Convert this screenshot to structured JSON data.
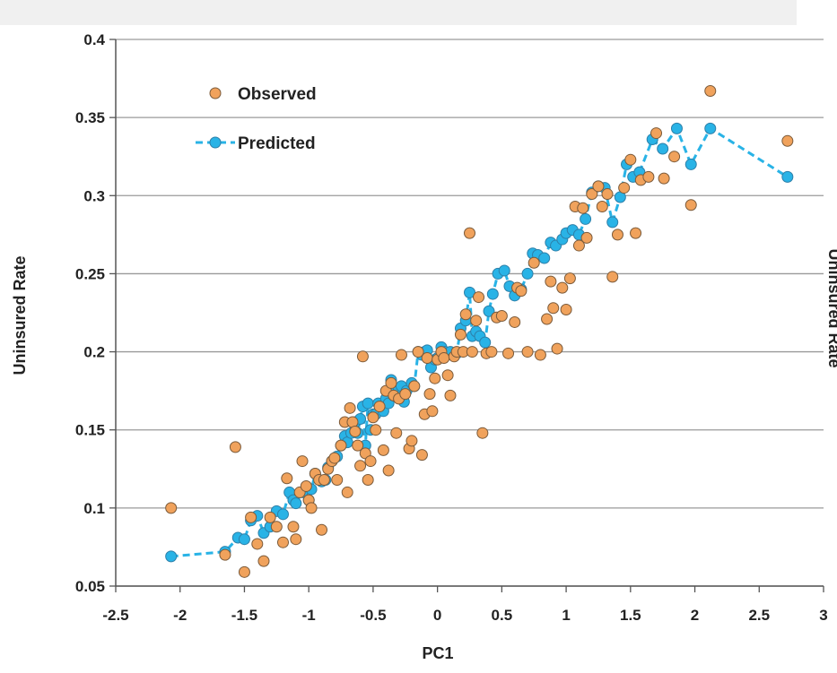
{
  "chart_data": {
    "type": "scatter",
    "xlabel": "PC1",
    "ylabel": "Uninsured Rate",
    "right_axis_label_clipped": "Uninsured Rate",
    "xlim": [
      -2.5,
      3
    ],
    "ylim": [
      0.05,
      0.4
    ],
    "x_ticks": [
      "-2.5",
      "-2",
      "-1.5",
      "-1",
      "-0.5",
      "0",
      "0.5",
      "1",
      "1.5",
      "2",
      "2.5",
      "3"
    ],
    "y_ticks": [
      "0.05",
      "0.1",
      "0.15",
      "0.2",
      "0.25",
      "0.3",
      "0.35",
      "0.4"
    ],
    "grid": "horizontal",
    "legend_position": "top-left",
    "colors": {
      "observed_fill": "#f0a25c",
      "observed_edge": "#7a5a3a",
      "predicted": "#29b3e6",
      "predicted_edge": "#2d7fa8",
      "grid": "#9a9a9a"
    },
    "series": [
      {
        "name": "Observed",
        "style": "markers",
        "points": [
          [
            -2.07,
            0.1
          ],
          [
            -1.65,
            0.07
          ],
          [
            -1.57,
            0.139
          ],
          [
            -1.5,
            0.059
          ],
          [
            -1.45,
            0.094
          ],
          [
            -1.4,
            0.077
          ],
          [
            -1.35,
            0.066
          ],
          [
            -1.3,
            0.094
          ],
          [
            -1.25,
            0.088
          ],
          [
            -1.2,
            0.078
          ],
          [
            -1.17,
            0.119
          ],
          [
            -1.12,
            0.088
          ],
          [
            -1.1,
            0.08
          ],
          [
            -1.07,
            0.11
          ],
          [
            -1.05,
            0.13
          ],
          [
            -1.02,
            0.114
          ],
          [
            -1.0,
            0.105
          ],
          [
            -0.98,
            0.1
          ],
          [
            -0.95,
            0.122
          ],
          [
            -0.92,
            0.118
          ],
          [
            -0.9,
            0.086
          ],
          [
            -0.88,
            0.118
          ],
          [
            -0.85,
            0.125
          ],
          [
            -0.82,
            0.13
          ],
          [
            -0.8,
            0.132
          ],
          [
            -0.78,
            0.118
          ],
          [
            -0.75,
            0.14
          ],
          [
            -0.72,
            0.155
          ],
          [
            -0.7,
            0.11
          ],
          [
            -0.68,
            0.164
          ],
          [
            -0.66,
            0.155
          ],
          [
            -0.64,
            0.149
          ],
          [
            -0.62,
            0.14
          ],
          [
            -0.6,
            0.127
          ],
          [
            -0.58,
            0.197
          ],
          [
            -0.56,
            0.135
          ],
          [
            -0.54,
            0.118
          ],
          [
            -0.52,
            0.13
          ],
          [
            -0.5,
            0.158
          ],
          [
            -0.48,
            0.15
          ],
          [
            -0.45,
            0.165
          ],
          [
            -0.42,
            0.137
          ],
          [
            -0.4,
            0.175
          ],
          [
            -0.38,
            0.124
          ],
          [
            -0.36,
            0.18
          ],
          [
            -0.34,
            0.172
          ],
          [
            -0.32,
            0.148
          ],
          [
            -0.3,
            0.17
          ],
          [
            -0.28,
            0.198
          ],
          [
            -0.25,
            0.173
          ],
          [
            -0.22,
            0.138
          ],
          [
            -0.2,
            0.143
          ],
          [
            -0.18,
            0.178
          ],
          [
            -0.15,
            0.2
          ],
          [
            -0.12,
            0.134
          ],
          [
            -0.1,
            0.16
          ],
          [
            -0.08,
            0.196
          ],
          [
            -0.06,
            0.173
          ],
          [
            -0.04,
            0.162
          ],
          [
            -0.02,
            0.183
          ],
          [
            0.0,
            0.195
          ],
          [
            0.03,
            0.2
          ],
          [
            0.05,
            0.196
          ],
          [
            0.08,
            0.185
          ],
          [
            0.1,
            0.172
          ],
          [
            0.13,
            0.197
          ],
          [
            0.15,
            0.2
          ],
          [
            0.18,
            0.211
          ],
          [
            0.2,
            0.2
          ],
          [
            0.22,
            0.224
          ],
          [
            0.25,
            0.276
          ],
          [
            0.27,
            0.2
          ],
          [
            0.3,
            0.22
          ],
          [
            0.32,
            0.235
          ],
          [
            0.35,
            0.148
          ],
          [
            0.38,
            0.199
          ],
          [
            0.42,
            0.2
          ],
          [
            0.46,
            0.222
          ],
          [
            0.5,
            0.223
          ],
          [
            0.55,
            0.199
          ],
          [
            0.6,
            0.219
          ],
          [
            0.62,
            0.241
          ],
          [
            0.65,
            0.239
          ],
          [
            0.7,
            0.2
          ],
          [
            0.75,
            0.257
          ],
          [
            0.8,
            0.198
          ],
          [
            0.85,
            0.221
          ],
          [
            0.88,
            0.245
          ],
          [
            0.9,
            0.228
          ],
          [
            0.93,
            0.202
          ],
          [
            0.97,
            0.241
          ],
          [
            1.0,
            0.227
          ],
          [
            1.03,
            0.247
          ],
          [
            1.07,
            0.293
          ],
          [
            1.1,
            0.268
          ],
          [
            1.13,
            0.292
          ],
          [
            1.16,
            0.273
          ],
          [
            1.2,
            0.301
          ],
          [
            1.25,
            0.306
          ],
          [
            1.28,
            0.293
          ],
          [
            1.32,
            0.301
          ],
          [
            1.36,
            0.248
          ],
          [
            1.4,
            0.275
          ],
          [
            1.45,
            0.305
          ],
          [
            1.5,
            0.323
          ],
          [
            1.54,
            0.276
          ],
          [
            1.58,
            0.31
          ],
          [
            1.64,
            0.312
          ],
          [
            1.7,
            0.34
          ],
          [
            1.76,
            0.311
          ],
          [
            1.84,
            0.325
          ],
          [
            1.97,
            0.294
          ],
          [
            2.12,
            0.367
          ],
          [
            2.72,
            0.335
          ]
        ]
      },
      {
        "name": "Predicted",
        "style": "dashed-line-with-markers",
        "points": [
          [
            -2.07,
            0.069
          ],
          [
            -1.65,
            0.072
          ],
          [
            -1.55,
            0.081
          ],
          [
            -1.5,
            0.08
          ],
          [
            -1.45,
            0.092
          ],
          [
            -1.4,
            0.095
          ],
          [
            -1.35,
            0.084
          ],
          [
            -1.3,
            0.088
          ],
          [
            -1.25,
            0.098
          ],
          [
            -1.2,
            0.096
          ],
          [
            -1.15,
            0.11
          ],
          [
            -1.12,
            0.105
          ],
          [
            -1.1,
            0.103
          ],
          [
            -1.05,
            0.11
          ],
          [
            -1.0,
            0.105
          ],
          [
            -0.98,
            0.112
          ],
          [
            -0.95,
            0.122
          ],
          [
            -0.9,
            0.117
          ],
          [
            -0.87,
            0.118
          ],
          [
            -0.85,
            0.126
          ],
          [
            -0.82,
            0.13
          ],
          [
            -0.78,
            0.133
          ],
          [
            -0.75,
            0.14
          ],
          [
            -0.72,
            0.146
          ],
          [
            -0.7,
            0.142
          ],
          [
            -0.67,
            0.148
          ],
          [
            -0.64,
            0.155
          ],
          [
            -0.62,
            0.148
          ],
          [
            -0.6,
            0.157
          ],
          [
            -0.58,
            0.165
          ],
          [
            -0.56,
            0.14
          ],
          [
            -0.54,
            0.167
          ],
          [
            -0.52,
            0.15
          ],
          [
            -0.5,
            0.16
          ],
          [
            -0.48,
            0.16
          ],
          [
            -0.46,
            0.167
          ],
          [
            -0.44,
            0.165
          ],
          [
            -0.42,
            0.162
          ],
          [
            -0.4,
            0.17
          ],
          [
            -0.38,
            0.167
          ],
          [
            -0.36,
            0.182
          ],
          [
            -0.34,
            0.172
          ],
          [
            -0.3,
            0.176
          ],
          [
            -0.28,
            0.178
          ],
          [
            -0.26,
            0.168
          ],
          [
            -0.24,
            0.175
          ],
          [
            -0.2,
            0.18
          ],
          [
            -0.18,
            0.178
          ],
          [
            -0.15,
            0.2
          ],
          [
            -0.12,
            0.198
          ],
          [
            -0.1,
            0.2
          ],
          [
            -0.08,
            0.201
          ],
          [
            -0.05,
            0.19
          ],
          [
            -0.02,
            0.195
          ],
          [
            0.0,
            0.196
          ],
          [
            0.03,
            0.203
          ],
          [
            0.06,
            0.2
          ],
          [
            0.1,
            0.2
          ],
          [
            0.15,
            0.199
          ],
          [
            0.18,
            0.215
          ],
          [
            0.22,
            0.22
          ],
          [
            0.25,
            0.238
          ],
          [
            0.27,
            0.21
          ],
          [
            0.3,
            0.213
          ],
          [
            0.33,
            0.21
          ],
          [
            0.37,
            0.206
          ],
          [
            0.4,
            0.226
          ],
          [
            0.43,
            0.237
          ],
          [
            0.47,
            0.25
          ],
          [
            0.52,
            0.252
          ],
          [
            0.56,
            0.242
          ],
          [
            0.6,
            0.236
          ],
          [
            0.65,
            0.24
          ],
          [
            0.7,
            0.25
          ],
          [
            0.74,
            0.263
          ],
          [
            0.78,
            0.262
          ],
          [
            0.83,
            0.26
          ],
          [
            0.88,
            0.27
          ],
          [
            0.92,
            0.268
          ],
          [
            0.97,
            0.272
          ],
          [
            1.0,
            0.276
          ],
          [
            1.05,
            0.278
          ],
          [
            1.1,
            0.275
          ],
          [
            1.15,
            0.285
          ],
          [
            1.2,
            0.302
          ],
          [
            1.25,
            0.306
          ],
          [
            1.3,
            0.305
          ],
          [
            1.36,
            0.283
          ],
          [
            1.42,
            0.299
          ],
          [
            1.47,
            0.32
          ],
          [
            1.52,
            0.312
          ],
          [
            1.57,
            0.315
          ],
          [
            1.67,
            0.336
          ],
          [
            1.75,
            0.33
          ],
          [
            1.86,
            0.343
          ],
          [
            1.97,
            0.32
          ],
          [
            2.12,
            0.343
          ],
          [
            2.72,
            0.312
          ]
        ]
      }
    ]
  }
}
